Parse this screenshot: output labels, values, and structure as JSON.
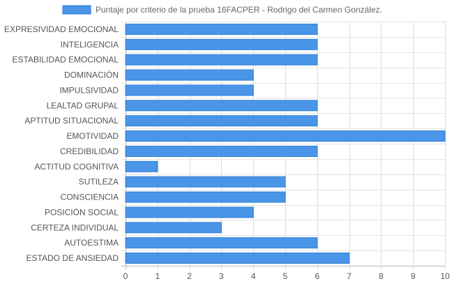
{
  "chart_data": {
    "type": "bar",
    "orientation": "horizontal",
    "categories": [
      "EXPRESIVIDAD EMOCIONAL",
      "INTELIGENCIA",
      "ESTABILIDAD EMOCIONAL",
      "DOMINACIÓN",
      "IMPULSIVIDAD",
      "LEALTAD GRUPAL",
      "APTITUD SITUACIONAL",
      "EMOTIVIDAD",
      "CREDIBILIDAD",
      "ACTITUD COGNITIVA",
      "SUTILEZA",
      "CONSCIENCIA",
      "POSICIÓN SOCIAL",
      "CERTEZA INDIVIDUAL",
      "AUTOESTIMA",
      "ESTADO DE ANSIEDAD"
    ],
    "series": [
      {
        "name": "Puntaje por criterio de la prueba 16FACPER - Rodrigo del Carmen González.",
        "values": [
          6,
          6,
          6,
          4,
          4,
          6,
          6,
          10,
          6,
          1,
          5,
          5,
          4,
          3,
          6,
          7
        ],
        "color": "#4a95e8",
        "border_color": "#2f7fd8"
      }
    ],
    "xlim": [
      0,
      10
    ],
    "xticks": [
      "0",
      "1",
      "2",
      "3",
      "4",
      "5",
      "6",
      "7",
      "8",
      "9",
      "10"
    ],
    "grid": true,
    "legend_position": "top-center"
  }
}
